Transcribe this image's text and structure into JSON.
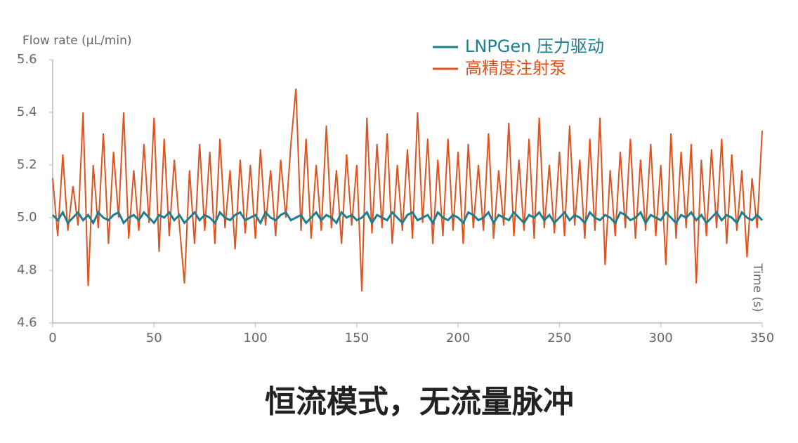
{
  "chart_data": {
    "type": "line",
    "y_label": "Flow rate (μL/min)",
    "x_label": "Time (s)",
    "caption": "恒流模式，无流量脉冲",
    "xlim": [
      0,
      350
    ],
    "ylim": [
      4.6,
      5.6
    ],
    "xticks": [
      0,
      50,
      100,
      150,
      200,
      250,
      300,
      350
    ],
    "yticks": [
      4.6,
      4.8,
      {
        "value": 5,
        "label": "5.0"
      },
      5.2,
      5.4,
      5.6
    ],
    "grid": false,
    "x": [
      0,
      2.5,
      5,
      7.5,
      10,
      12.5,
      15,
      17.5,
      20,
      22.5,
      25,
      27.5,
      30,
      32.5,
      35,
      37.5,
      40,
      42.5,
      45,
      47.5,
      50,
      52.5,
      55,
      57.5,
      60,
      62.5,
      65,
      67.5,
      70,
      72.5,
      75,
      77.5,
      80,
      82.5,
      85,
      87.5,
      90,
      92.5,
      95,
      97.5,
      100,
      102.5,
      105,
      107.5,
      110,
      112.5,
      115,
      117.5,
      120,
      122.5,
      125,
      127.5,
      130,
      132.5,
      135,
      137.5,
      140,
      142.5,
      145,
      147.5,
      150,
      152.5,
      155,
      157.5,
      160,
      162.5,
      165,
      167.5,
      170,
      172.5,
      175,
      177.5,
      180,
      182.5,
      185,
      187.5,
      190,
      192.5,
      195,
      197.5,
      200,
      202.5,
      205,
      207.5,
      210,
      212.5,
      215,
      217.5,
      220,
      222.5,
      225,
      227.5,
      230,
      232.5,
      235,
      237.5,
      240,
      242.5,
      245,
      247.5,
      250,
      252.5,
      255,
      257.5,
      260,
      262.5,
      265,
      267.5,
      270,
      272.5,
      275,
      277.5,
      280,
      282.5,
      285,
      287.5,
      290,
      292.5,
      295,
      297.5,
      300,
      302.5,
      305,
      307.5,
      310,
      312.5,
      315,
      317.5,
      320,
      322.5,
      325,
      327.5,
      330,
      332.5,
      335,
      337.5,
      340,
      342.5,
      345,
      347.5,
      350
    ],
    "series": [
      {
        "name": "LNPGen 压力驱动",
        "color": "#1b7f8f",
        "values": [
          5.01,
          4.99,
          5.02,
          4.98,
          5.0,
          5.02,
          4.99,
          5.01,
          4.98,
          5.02,
          5.0,
          4.99,
          5.01,
          5.02,
          4.98,
          5.0,
          5.01,
          4.99,
          5.02,
          5.0,
          4.98,
          5.01,
          5.0,
          5.02,
          4.99,
          5.01,
          4.98,
          5.0,
          5.02,
          4.99,
          5.01,
          5.0,
          4.98,
          5.02,
          5.0,
          4.99,
          5.01,
          5.02,
          4.99,
          5.0,
          5.01,
          4.98,
          5.02,
          5.0,
          4.99,
          5.01,
          5.02,
          4.99,
          5.0,
          5.01,
          4.98,
          5.0,
          5.02,
          4.99,
          5.01,
          5.0,
          4.98,
          5.02,
          5.0,
          5.01,
          4.99,
          5.0,
          5.02,
          4.98,
          5.01,
          5.0,
          4.99,
          5.02,
          5.0,
          4.98,
          5.01,
          5.02,
          4.99,
          5.0,
          5.01,
          4.98,
          5.02,
          5.0,
          4.99,
          5.01,
          5.0,
          4.98,
          5.02,
          5.01,
          4.99,
          5.0,
          5.02,
          4.98,
          5.01,
          5.0,
          4.99,
          5.02,
          5.0,
          4.98,
          5.01,
          5.0,
          5.02,
          4.99,
          5.01,
          4.98,
          5.0,
          5.02,
          4.99,
          5.01,
          5.0,
          4.98,
          5.02,
          5.0,
          4.99,
          5.01,
          5.0,
          4.98,
          5.02,
          5.01,
          4.99,
          5.0,
          5.02,
          4.98,
          5.01,
          5.0,
          4.99,
          5.02,
          5.0,
          4.98,
          5.01,
          5.0,
          5.02,
          4.99,
          5.01,
          4.98,
          5.0,
          5.02,
          4.99,
          5.01,
          5.0,
          4.98,
          5.02,
          5.0,
          4.99,
          5.01,
          4.99
        ]
      },
      {
        "name": "高精度注射泵",
        "color": "#e0531f",
        "values": [
          5.15,
          4.93,
          5.24,
          4.95,
          5.12,
          4.97,
          5.4,
          4.74,
          5.2,
          4.96,
          5.32,
          4.9,
          5.25,
          5.0,
          5.4,
          4.92,
          5.18,
          4.95,
          5.28,
          4.98,
          5.38,
          4.87,
          5.3,
          4.93,
          5.22,
          4.97,
          4.75,
          5.18,
          4.9,
          5.28,
          4.95,
          5.25,
          4.9,
          5.3,
          4.96,
          5.18,
          4.88,
          5.22,
          4.94,
          5.2,
          4.92,
          5.26,
          4.97,
          5.18,
          4.93,
          5.22,
          5.0,
          5.28,
          5.49,
          4.95,
          5.3,
          4.92,
          5.2,
          4.95,
          5.35,
          4.96,
          5.18,
          4.9,
          5.24,
          4.97,
          5.2,
          4.72,
          5.38,
          4.94,
          5.28,
          4.96,
          5.32,
          4.9,
          5.2,
          4.95,
          5.26,
          4.92,
          5.4,
          4.98,
          5.3,
          4.9,
          5.22,
          4.93,
          5.3,
          4.95,
          5.25,
          4.9,
          5.28,
          4.96,
          5.2,
          4.95,
          5.32,
          4.92,
          5.18,
          4.97,
          5.36,
          4.93,
          5.22,
          4.95,
          5.3,
          4.92,
          5.38,
          4.96,
          5.2,
          4.94,
          5.25,
          4.93,
          5.35,
          4.97,
          5.22,
          4.92,
          5.3,
          4.95,
          5.38,
          4.82,
          5.18,
          4.93,
          5.25,
          4.96,
          5.3,
          4.92,
          5.22,
          4.95,
          5.28,
          4.93,
          5.2,
          4.82,
          5.32,
          4.92,
          5.25,
          4.96,
          5.28,
          4.75,
          5.22,
          4.93,
          5.26,
          4.96,
          5.3,
          4.9,
          5.24,
          4.95,
          5.18,
          4.85,
          5.15,
          4.96,
          5.33
        ]
      }
    ]
  }
}
